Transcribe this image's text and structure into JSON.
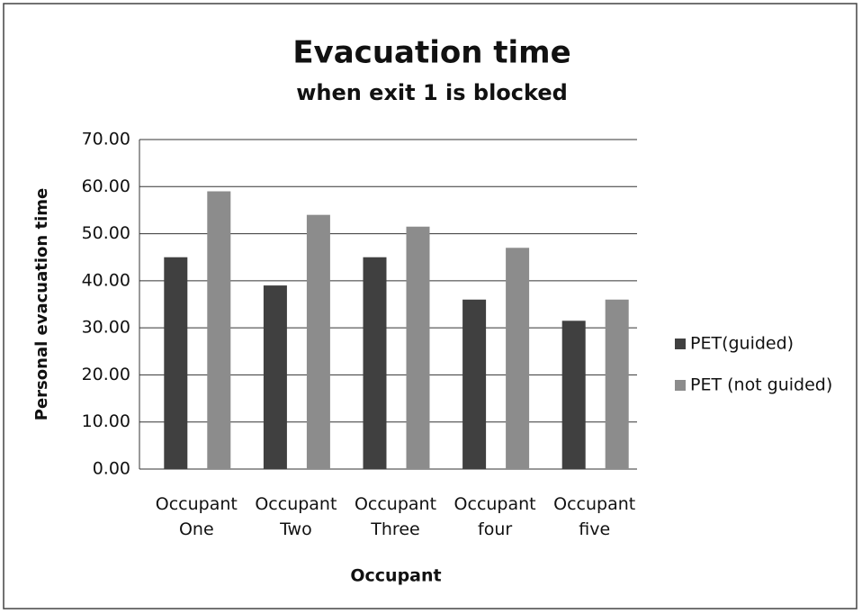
{
  "chart_data": {
    "type": "bar",
    "title": "Evacuation time",
    "subtitle": "when exit 1 is blocked",
    "y_label": "Personal evacuation time",
    "x_label": "Occupant",
    "categories": [
      "Occupant One",
      "Occupant Two",
      "Occupant Three",
      "Occupant four",
      "Occupant five"
    ],
    "series": [
      {
        "name": "PET(guided)",
        "color": "#404040",
        "values": [
          45,
          39,
          45,
          36,
          31.5
        ]
      },
      {
        "name": "PET (not guided)",
        "color": "#8c8c8c",
        "values": [
          59,
          54,
          51.5,
          47,
          36
        ]
      }
    ],
    "ylim": [
      0,
      70
    ],
    "yticks": [
      {
        "value": 0,
        "label": "0.00"
      },
      {
        "value": 10,
        "label": "10.00"
      },
      {
        "value": 20,
        "label": "20.00"
      },
      {
        "value": 30,
        "label": "30.00"
      },
      {
        "value": 40,
        "label": "40.00"
      },
      {
        "value": 50,
        "label": "50.00"
      },
      {
        "value": 60,
        "label": "60.00"
      },
      {
        "value": 70,
        "label": "70.00"
      }
    ],
    "grid": true,
    "legend": "right"
  }
}
